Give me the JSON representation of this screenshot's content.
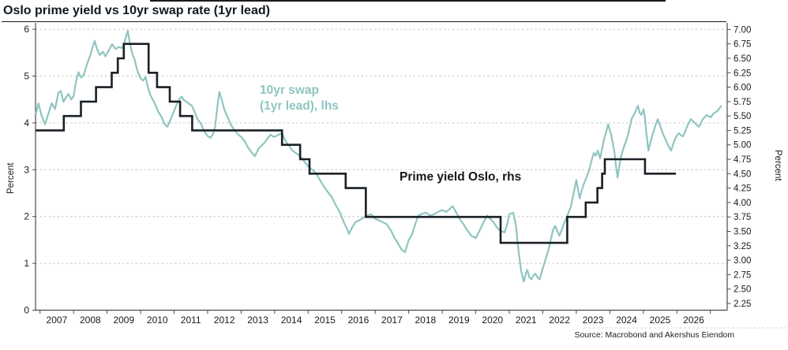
{
  "title": "Oslo prime yield vs 10yr swap rate (1yr lead)",
  "source": "Source: Macrobond and Akershus Eiendom",
  "annotations": {
    "swap_label": "10yr swap\n(1yr lead), lhs",
    "prime_label": "Prime yield Oslo, rhs"
  },
  "colors": {
    "swap_line": "#8FC5C1",
    "prime_line": "#1A2026",
    "grid": "#c6c6c6",
    "axis": "#4a4a4a",
    "tick_text": "#1a1a1a"
  },
  "chart_data": {
    "type": "line",
    "title": "Oslo prime yield vs 10yr swap rate (1yr lead)",
    "x_domain": [
      2006.866,
      2027.5
    ],
    "x_axis": {
      "tick_start": 2007,
      "tick_end": 2027,
      "label_start": 2007,
      "label_end": 2026
    },
    "left_axis": {
      "label": "Percent",
      "min": 0,
      "max": 6,
      "tick_step": 1,
      "gridlines": [
        1,
        2,
        3,
        4,
        5,
        6
      ]
    },
    "right_axis": {
      "label": "Percent",
      "min": 2.25,
      "max": 7.0,
      "tick_step": 0.25
    },
    "legend_position": "inline-annotations",
    "grid": "horizontal-dashed",
    "series": [
      {
        "name": "10yr swap (1yr lead), lhs",
        "axis": "left",
        "style": "jagged-line",
        "points": [
          [
            2006.88,
            4.2
          ],
          [
            2006.95,
            4.42
          ],
          [
            2007.05,
            4.15
          ],
          [
            2007.15,
            3.97
          ],
          [
            2007.25,
            4.2
          ],
          [
            2007.35,
            4.42
          ],
          [
            2007.45,
            4.3
          ],
          [
            2007.55,
            4.65
          ],
          [
            2007.62,
            4.68
          ],
          [
            2007.7,
            4.45
          ],
          [
            2007.78,
            4.55
          ],
          [
            2007.85,
            4.62
          ],
          [
            2007.93,
            4.5
          ],
          [
            2008.0,
            4.57
          ],
          [
            2008.08,
            4.9
          ],
          [
            2008.15,
            5.08
          ],
          [
            2008.22,
            4.97
          ],
          [
            2008.3,
            5.02
          ],
          [
            2008.4,
            5.25
          ],
          [
            2008.5,
            5.45
          ],
          [
            2008.57,
            5.62
          ],
          [
            2008.63,
            5.75
          ],
          [
            2008.7,
            5.58
          ],
          [
            2008.78,
            5.45
          ],
          [
            2008.88,
            5.52
          ],
          [
            2008.95,
            5.42
          ],
          [
            2009.05,
            5.55
          ],
          [
            2009.15,
            5.68
          ],
          [
            2009.25,
            5.58
          ],
          [
            2009.35,
            5.62
          ],
          [
            2009.45,
            5.6
          ],
          [
            2009.52,
            5.72
          ],
          [
            2009.58,
            5.88
          ],
          [
            2009.62,
            5.97
          ],
          [
            2009.68,
            5.7
          ],
          [
            2009.75,
            5.48
          ],
          [
            2009.82,
            5.36
          ],
          [
            2009.9,
            5.12
          ],
          [
            2010.0,
            4.95
          ],
          [
            2010.08,
            4.9
          ],
          [
            2010.15,
            4.98
          ],
          [
            2010.22,
            4.75
          ],
          [
            2010.3,
            4.58
          ],
          [
            2010.4,
            4.45
          ],
          [
            2010.52,
            4.25
          ],
          [
            2010.63,
            4.12
          ],
          [
            2010.72,
            3.97
          ],
          [
            2010.8,
            3.92
          ],
          [
            2010.88,
            4.05
          ],
          [
            2010.95,
            4.17
          ],
          [
            2011.05,
            4.35
          ],
          [
            2011.15,
            4.5
          ],
          [
            2011.22,
            4.56
          ],
          [
            2011.3,
            4.48
          ],
          [
            2011.38,
            4.45
          ],
          [
            2011.45,
            4.4
          ],
          [
            2011.53,
            4.37
          ],
          [
            2011.62,
            4.22
          ],
          [
            2011.7,
            4.08
          ],
          [
            2011.8,
            3.98
          ],
          [
            2011.9,
            3.82
          ],
          [
            2012.0,
            3.72
          ],
          [
            2012.08,
            3.68
          ],
          [
            2012.15,
            3.75
          ],
          [
            2012.22,
            3.9
          ],
          [
            2012.3,
            4.4
          ],
          [
            2012.35,
            4.66
          ],
          [
            2012.42,
            4.5
          ],
          [
            2012.5,
            4.28
          ],
          [
            2012.6,
            4.12
          ],
          [
            2012.7,
            3.95
          ],
          [
            2012.8,
            3.85
          ],
          [
            2012.9,
            3.76
          ],
          [
            2013.0,
            3.7
          ],
          [
            2013.1,
            3.62
          ],
          [
            2013.2,
            3.48
          ],
          [
            2013.3,
            3.38
          ],
          [
            2013.41,
            3.29
          ],
          [
            2013.52,
            3.45
          ],
          [
            2013.62,
            3.52
          ],
          [
            2013.7,
            3.58
          ],
          [
            2013.8,
            3.68
          ],
          [
            2013.88,
            3.75
          ],
          [
            2013.97,
            3.7
          ],
          [
            2014.05,
            3.72
          ],
          [
            2014.15,
            3.76
          ],
          [
            2014.22,
            3.78
          ],
          [
            2014.32,
            3.62
          ],
          [
            2014.42,
            3.52
          ],
          [
            2014.52,
            3.42
          ],
          [
            2014.62,
            3.36
          ],
          [
            2014.76,
            3.29
          ],
          [
            2014.88,
            3.18
          ],
          [
            2015.0,
            3.07
          ],
          [
            2015.12,
            3.0
          ],
          [
            2015.23,
            2.93
          ],
          [
            2015.35,
            2.78
          ],
          [
            2015.47,
            2.64
          ],
          [
            2015.58,
            2.53
          ],
          [
            2015.7,
            2.42
          ],
          [
            2015.82,
            2.25
          ],
          [
            2015.94,
            2.1
          ],
          [
            2016.05,
            1.9
          ],
          [
            2016.15,
            1.75
          ],
          [
            2016.22,
            1.63
          ],
          [
            2016.32,
            1.78
          ],
          [
            2016.41,
            1.88
          ],
          [
            2016.52,
            1.92
          ],
          [
            2016.64,
            1.97
          ],
          [
            2016.76,
            2.02
          ],
          [
            2016.88,
            2.05
          ],
          [
            2017.0,
            1.95
          ],
          [
            2017.11,
            1.92
          ],
          [
            2017.23,
            1.88
          ],
          [
            2017.35,
            1.83
          ],
          [
            2017.47,
            1.7
          ],
          [
            2017.58,
            1.54
          ],
          [
            2017.7,
            1.4
          ],
          [
            2017.8,
            1.28
          ],
          [
            2017.89,
            1.24
          ],
          [
            2018.0,
            1.5
          ],
          [
            2018.1,
            1.62
          ],
          [
            2018.2,
            1.85
          ],
          [
            2018.29,
            2.02
          ],
          [
            2018.4,
            2.06
          ],
          [
            2018.52,
            2.08
          ],
          [
            2018.64,
            2.02
          ],
          [
            2018.76,
            2.05
          ],
          [
            2018.88,
            2.1
          ],
          [
            2019.0,
            2.14
          ],
          [
            2019.12,
            2.1
          ],
          [
            2019.22,
            2.16
          ],
          [
            2019.31,
            2.22
          ],
          [
            2019.42,
            2.08
          ],
          [
            2019.52,
            1.95
          ],
          [
            2019.62,
            1.85
          ],
          [
            2019.75,
            1.7
          ],
          [
            2019.87,
            1.59
          ],
          [
            2020.0,
            1.54
          ],
          [
            2020.1,
            1.68
          ],
          [
            2020.18,
            1.8
          ],
          [
            2020.26,
            1.92
          ],
          [
            2020.34,
            2.02
          ],
          [
            2020.44,
            1.95
          ],
          [
            2020.53,
            1.88
          ],
          [
            2020.62,
            1.78
          ],
          [
            2020.7,
            1.71
          ],
          [
            2020.8,
            1.68
          ],
          [
            2020.86,
            1.66
          ],
          [
            2020.94,
            1.85
          ],
          [
            2021.0,
            2.05
          ],
          [
            2021.12,
            2.08
          ],
          [
            2021.2,
            1.8
          ],
          [
            2021.26,
            1.37
          ],
          [
            2021.35,
            0.85
          ],
          [
            2021.43,
            0.61
          ],
          [
            2021.5,
            0.8
          ],
          [
            2021.54,
            0.86
          ],
          [
            2021.6,
            0.7
          ],
          [
            2021.66,
            0.66
          ],
          [
            2021.72,
            0.74
          ],
          [
            2021.78,
            0.78
          ],
          [
            2021.84,
            0.7
          ],
          [
            2021.9,
            0.66
          ],
          [
            2021.98,
            0.85
          ],
          [
            2022.06,
            1.03
          ],
          [
            2022.14,
            1.22
          ],
          [
            2022.2,
            1.37
          ],
          [
            2022.3,
            1.71
          ],
          [
            2022.37,
            1.8
          ],
          [
            2022.44,
            1.68
          ],
          [
            2022.49,
            1.59
          ],
          [
            2022.57,
            1.72
          ],
          [
            2022.65,
            1.88
          ],
          [
            2022.75,
            2.05
          ],
          [
            2022.84,
            2.22
          ],
          [
            2022.92,
            2.5
          ],
          [
            2023.0,
            2.78
          ],
          [
            2023.06,
            2.55
          ],
          [
            2023.1,
            2.39
          ],
          [
            2023.17,
            2.58
          ],
          [
            2023.24,
            2.73
          ],
          [
            2023.31,
            2.85
          ],
          [
            2023.38,
            2.98
          ],
          [
            2023.45,
            3.18
          ],
          [
            2023.52,
            3.36
          ],
          [
            2023.58,
            3.3
          ],
          [
            2023.64,
            3.41
          ],
          [
            2023.71,
            3.24
          ],
          [
            2023.77,
            3.45
          ],
          [
            2023.83,
            3.66
          ],
          [
            2023.89,
            3.8
          ],
          [
            2023.95,
            3.97
          ],
          [
            2024.04,
            3.75
          ],
          [
            2024.13,
            3.41
          ],
          [
            2024.18,
            3.1
          ],
          [
            2024.23,
            2.83
          ],
          [
            2024.28,
            3.05
          ],
          [
            2024.32,
            3.24
          ],
          [
            2024.42,
            3.49
          ],
          [
            2024.48,
            3.6
          ],
          [
            2024.54,
            3.75
          ],
          [
            2024.6,
            3.92
          ],
          [
            2024.65,
            4.08
          ],
          [
            2024.72,
            4.18
          ],
          [
            2024.77,
            4.25
          ],
          [
            2024.84,
            4.37
          ],
          [
            2024.89,
            4.22
          ],
          [
            2024.94,
            4.17
          ],
          [
            2025.01,
            4.29
          ],
          [
            2025.05,
            4.1
          ],
          [
            2025.08,
            3.83
          ],
          [
            2025.12,
            3.6
          ],
          [
            2025.15,
            3.41
          ],
          [
            2025.21,
            3.58
          ],
          [
            2025.27,
            3.75
          ],
          [
            2025.32,
            3.85
          ],
          [
            2025.36,
            3.95
          ],
          [
            2025.43,
            4.08
          ],
          [
            2025.48,
            3.98
          ],
          [
            2025.53,
            3.88
          ],
          [
            2025.58,
            3.78
          ],
          [
            2025.62,
            3.71
          ],
          [
            2025.68,
            3.62
          ],
          [
            2025.74,
            3.52
          ],
          [
            2025.8,
            3.44
          ],
          [
            2025.83,
            3.41
          ],
          [
            2025.89,
            3.55
          ],
          [
            2025.95,
            3.66
          ],
          [
            2026.01,
            3.74
          ],
          [
            2026.06,
            3.78
          ],
          [
            2026.12,
            3.74
          ],
          [
            2026.18,
            3.71
          ],
          [
            2026.24,
            3.8
          ],
          [
            2026.3,
            3.92
          ],
          [
            2026.36,
            4.0
          ],
          [
            2026.42,
            4.08
          ],
          [
            2026.48,
            4.04
          ],
          [
            2026.54,
            4.0
          ],
          [
            2026.6,
            3.95
          ],
          [
            2026.66,
            3.92
          ],
          [
            2026.72,
            4.0
          ],
          [
            2026.77,
            4.08
          ],
          [
            2026.83,
            4.12
          ],
          [
            2026.89,
            4.17
          ],
          [
            2026.95,
            4.14
          ],
          [
            2027.01,
            4.12
          ],
          [
            2027.07,
            4.18
          ],
          [
            2027.13,
            4.22
          ],
          [
            2027.2,
            4.25
          ],
          [
            2027.26,
            4.3
          ],
          [
            2027.32,
            4.36
          ]
        ]
      },
      {
        "name": "Prime yield Oslo, rhs",
        "axis": "right",
        "style": "step",
        "segments": [
          [
            2006.87,
            2007.71,
            5.25
          ],
          [
            2007.71,
            2008.22,
            5.5
          ],
          [
            2008.22,
            2008.67,
            5.75
          ],
          [
            2008.67,
            2009.14,
            6.0
          ],
          [
            2009.14,
            2009.32,
            6.25
          ],
          [
            2009.32,
            2009.5,
            6.5
          ],
          [
            2009.5,
            2010.24,
            6.75
          ],
          [
            2010.24,
            2010.49,
            6.25
          ],
          [
            2010.49,
            2010.87,
            6.0
          ],
          [
            2010.87,
            2011.18,
            5.75
          ],
          [
            2011.18,
            2011.54,
            5.5
          ],
          [
            2011.54,
            2014.22,
            5.25
          ],
          [
            2014.22,
            2014.76,
            5.0
          ],
          [
            2014.76,
            2015.04,
            4.75
          ],
          [
            2015.04,
            2016.12,
            4.5
          ],
          [
            2016.12,
            2016.72,
            4.25
          ],
          [
            2016.72,
            2020.74,
            3.75
          ],
          [
            2020.74,
            2022.73,
            3.3
          ],
          [
            2022.73,
            2023.28,
            3.75
          ],
          [
            2023.28,
            2023.63,
            4.0
          ],
          [
            2023.63,
            2023.77,
            4.25
          ],
          [
            2023.77,
            2023.85,
            4.5
          ],
          [
            2023.85,
            2025.05,
            4.75
          ],
          [
            2025.05,
            2025.97,
            4.5
          ]
        ]
      }
    ]
  }
}
